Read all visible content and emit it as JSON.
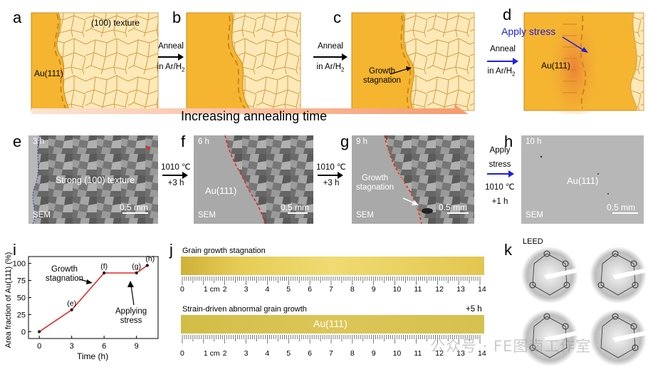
{
  "panels": {
    "a": "a",
    "b": "b",
    "c": "c",
    "d": "d",
    "e": "e",
    "f": "f",
    "g": "g",
    "h": "h",
    "i": "i",
    "j": "j",
    "k": "k"
  },
  "schematics": {
    "a_texture": "(100) texture",
    "a_au": "Au(111)",
    "c_growth": "Growth",
    "c_stagnation": "stagnation",
    "d_apply_stress": "Apply stress",
    "d_au": "Au(111)"
  },
  "anneal_arrows": [
    {
      "line1": "Anneal",
      "line2": "in Ar/H",
      "sub": "2"
    },
    {
      "line1": "Anneal",
      "line2": "in Ar/H",
      "sub": "2"
    },
    {
      "line1": "Anneal",
      "line2": "in Ar/H",
      "sub": "2"
    }
  ],
  "banner": "Increasing annealing time",
  "sem": {
    "e_time": "3 h",
    "e_label": "Strong (100) texture",
    "e_sem": "SEM",
    "e_scale": "0.5 mm",
    "f_time": "6 h",
    "f_label": "Au(111)",
    "f_sem": "SEM",
    "f_scale": "0.5 mm",
    "g_time": "9 h",
    "g_growth": "Growth",
    "g_stagnation": "stagnation",
    "g_sem": "SEM",
    "g_scale": "0.5 mm",
    "h_time": "10 h",
    "h_label": "Au(111)",
    "h_sem": "SEM",
    "h_scale": "0.5 mm"
  },
  "sem_arrows": [
    {
      "line1": "1010 ℃",
      "line2": "+3 h"
    },
    {
      "line1": "1010 ℃",
      "line2": "+3 h"
    },
    {
      "line1": "Apply",
      "line2": "stress",
      "line3": "1010 ℃",
      "line4": "+1 h"
    }
  ],
  "chart_data": {
    "type": "line",
    "xlabel": "Time (h)",
    "ylabel": "Area fraction of Au(111) (%)",
    "xlim": [
      -1,
      11
    ],
    "ylim": [
      -10,
      110
    ],
    "xticks": [
      0,
      3,
      6,
      9
    ],
    "yticks": [
      0,
      25,
      50,
      75,
      100
    ],
    "points": [
      {
        "x": 0,
        "y": 0,
        "label": ""
      },
      {
        "x": 3,
        "y": 32,
        "label": "(e)"
      },
      {
        "x": 6,
        "y": 86,
        "label": "(f)"
      },
      {
        "x": 9,
        "y": 86,
        "label": "(g)"
      },
      {
        "x": 10,
        "y": 97,
        "label": "(h)"
      }
    ],
    "annotations": [
      {
        "line1": "Growth",
        "line2": "stagnation"
      },
      {
        "line1": "Applying",
        "line2": "stress"
      }
    ],
    "colors": {
      "line": "#e8282a",
      "marker": "#222222"
    }
  },
  "strips": {
    "top_caption": "Grain growth stagnation",
    "bottom_caption": "Strain-driven abnormal grain growth",
    "bottom_plus": "+5 h",
    "bottom_au": "Au(111)",
    "ruler_numbers": [
      "0",
      "1 cm",
      "2",
      "3",
      "4",
      "5",
      "6",
      "7",
      "8",
      "9",
      "10",
      "11",
      "12",
      "13",
      "14"
    ]
  },
  "leed": {
    "title": "LEED"
  },
  "watermark": "公众号 · FE图南工作室",
  "colors": {
    "gold": "#f5b531",
    "gold_edge": "#c9881a",
    "grain_fill": "#fde9b8",
    "grain_line": "#d9a24a",
    "banner": "#f6a47a",
    "strip_gold": "#e0c34a",
    "red_boundary": "#e8282a",
    "blue_text": "#2020e0"
  }
}
